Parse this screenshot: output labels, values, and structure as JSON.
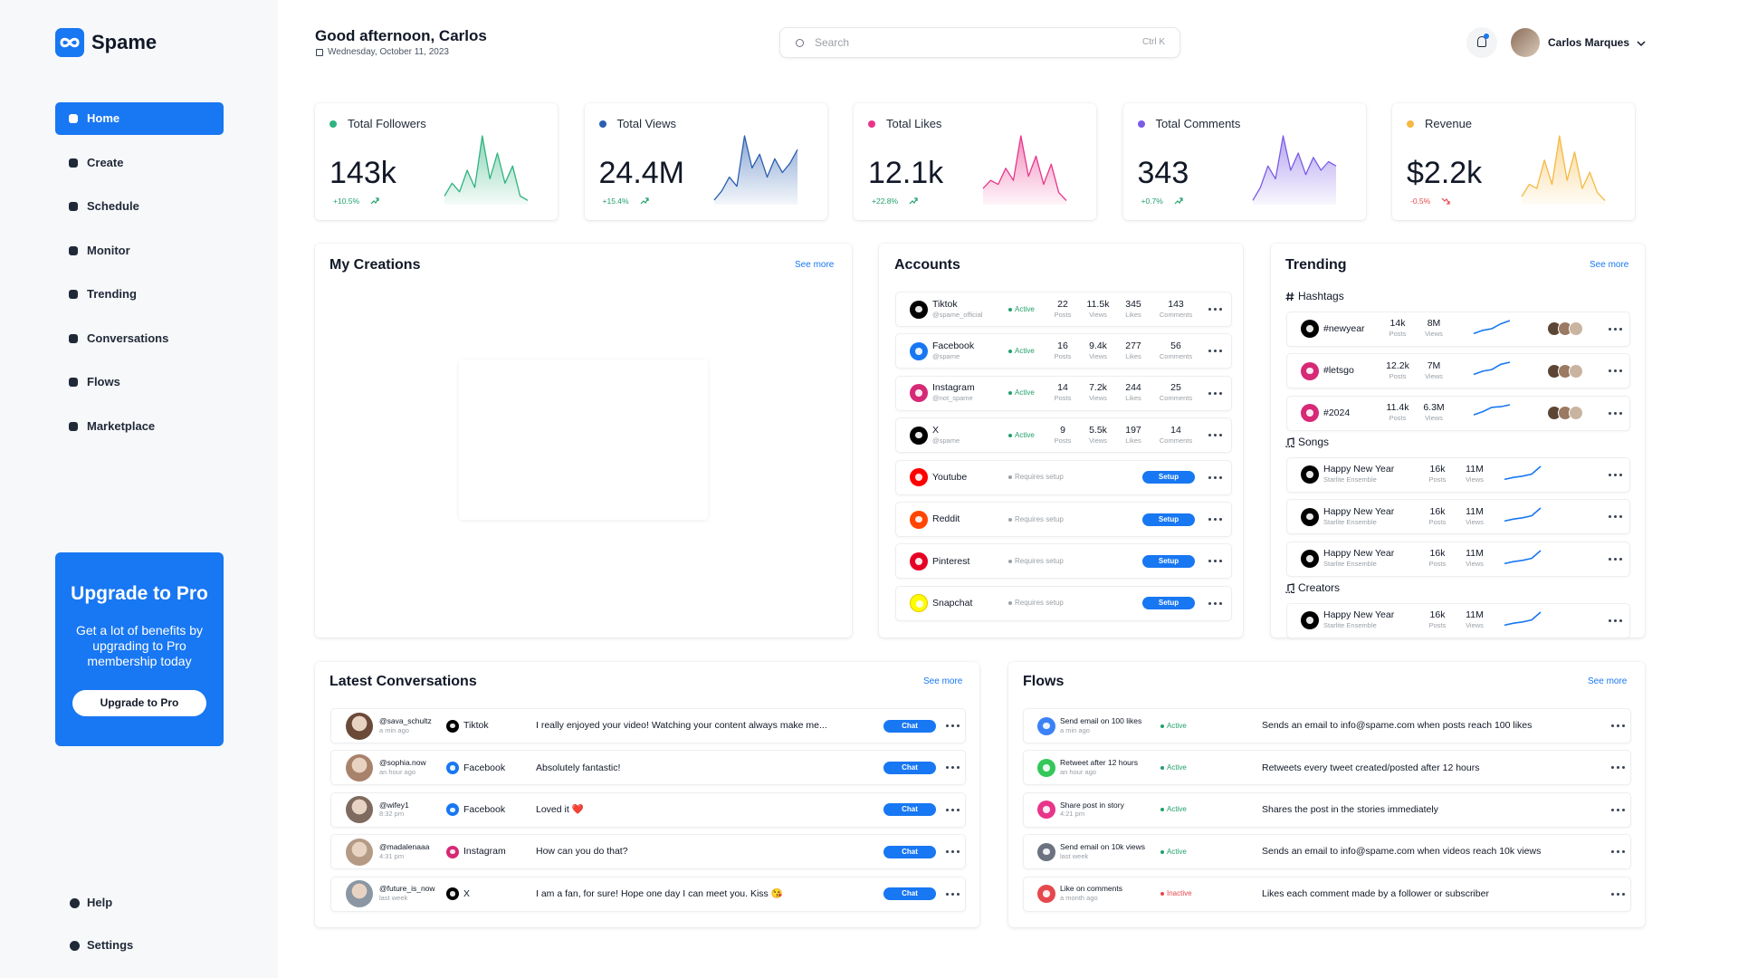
{
  "sidebar": {
    "brand": "Spame",
    "nav": [
      "Home",
      "Create",
      "Schedule",
      "Monitor",
      "Trending",
      "Conversations",
      "Flows",
      "Marketplace"
    ],
    "upgrade": {
      "title": "Upgrade to Pro",
      "text": "Get a lot of benefits by upgrading to Pro membership today",
      "button": "Upgrade to Pro"
    },
    "footer": [
      "Help",
      "Settings"
    ]
  },
  "header": {
    "greeting": "Good afternoon, Carlos",
    "date": "Wednesday, October 11, 2023",
    "search": "Search",
    "shortcut": "Ctrl K",
    "user": "Carlos Marques"
  },
  "stats": [
    {
      "label": "Total Followers",
      "value": "143k",
      "change": "+10.5%",
      "color": "#2fb37f",
      "trend": [
        10,
        25,
        15,
        40,
        20,
        80,
        30,
        60,
        25,
        45,
        10,
        5
      ]
    },
    {
      "label": "Total Views",
      "value": "24.4M",
      "change": "+15.4%",
      "color": "#2b5fb0",
      "trend": [
        5,
        15,
        30,
        20,
        75,
        40,
        55,
        30,
        50,
        35,
        45,
        60
      ]
    },
    {
      "label": "Total Likes",
      "value": "12.1k",
      "change": "+22.8%",
      "color": "#e8358a",
      "trend": [
        20,
        30,
        25,
        45,
        30,
        85,
        35,
        60,
        25,
        50,
        15,
        5
      ]
    },
    {
      "label": "Total Comments",
      "value": "343",
      "change": "+0.7%",
      "color": "#7b5ce6",
      "trend": [
        5,
        20,
        45,
        30,
        80,
        40,
        60,
        35,
        55,
        40,
        50,
        45
      ]
    },
    {
      "label": "Revenue",
      "value": "$2.2k",
      "change": "-0.5%",
      "color": "#f5b942",
      "trend": [
        10,
        25,
        20,
        55,
        25,
        85,
        30,
        65,
        20,
        40,
        15,
        5
      ]
    }
  ],
  "creations": {
    "title": "My Creations",
    "more": "See more"
  },
  "accounts": {
    "title": "Accounts",
    "rows": [
      {
        "platform": "Tiktok",
        "handle": "@spame_official",
        "status": "Active",
        "color": "#000000",
        "metrics": [
          {
            "value": "22",
            "label": "Posts"
          },
          {
            "value": "11.5k",
            "label": "Views"
          },
          {
            "value": "345",
            "label": "Likes"
          },
          {
            "value": "143",
            "label": "Comments"
          }
        ]
      },
      {
        "platform": "Facebook",
        "handle": "@spame",
        "status": "Active",
        "color": "#1877f2",
        "metrics": [
          {
            "value": "16",
            "label": "Posts"
          },
          {
            "value": "9.4k",
            "label": "Views"
          },
          {
            "value": "277",
            "label": "Likes"
          },
          {
            "value": "56",
            "label": "Comments"
          }
        ]
      },
      {
        "platform": "Instagram",
        "handle": "@not_spame",
        "status": "Active",
        "color": "#d62976",
        "metrics": [
          {
            "value": "14",
            "label": "Posts"
          },
          {
            "value": "7.2k",
            "label": "Views"
          },
          {
            "value": "244",
            "label": "Likes"
          },
          {
            "value": "25",
            "label": "Comments"
          }
        ]
      },
      {
        "platform": "X",
        "handle": "@spame",
        "status": "Active",
        "color": "#000000",
        "metrics": [
          {
            "value": "9",
            "label": "Posts"
          },
          {
            "value": "5.5k",
            "label": "Views"
          },
          {
            "value": "197",
            "label": "Likes"
          },
          {
            "value": "14",
            "label": "Comments"
          }
        ]
      },
      {
        "platform": "Youtube",
        "status": "Requires setup",
        "action": "Setup",
        "color": "#ff0000"
      },
      {
        "platform": "Reddit",
        "status": "Requires setup",
        "action": "Setup",
        "color": "#ff4500"
      },
      {
        "platform": "Pinterest",
        "status": "Requires setup",
        "action": "Setup",
        "color": "#e60023"
      },
      {
        "platform": "Snapchat",
        "status": "Requires setup",
        "action": "Setup",
        "color": "#fffc00"
      }
    ]
  },
  "trending": {
    "title": "Trending",
    "more": "See more",
    "groups": [
      {
        "name": "Hashtags",
        "items": [
          {
            "name": "#newyear",
            "color": "#000000",
            "metrics": [
              {
                "value": "14k",
                "label": "Posts"
              },
              {
                "value": "8M",
                "label": "Views"
              }
            ],
            "trend": [
              1,
              2,
              2.5,
              4,
              5
            ]
          },
          {
            "name": "#letsgo",
            "color": "#d62976",
            "metrics": [
              {
                "value": "12.2k",
                "label": "Posts"
              },
              {
                "value": "7M",
                "label": "Views"
              }
            ],
            "trend": [
              1,
              1.8,
              2.2,
              3.5,
              4
            ]
          },
          {
            "name": "#2024",
            "color": "#d62976",
            "metrics": [
              {
                "value": "11.4k",
                "label": "Posts"
              },
              {
                "value": "6.3M",
                "label": "Views"
              }
            ],
            "trend": [
              1,
              1.5,
              2.2,
              2.3,
              2.6
            ]
          }
        ]
      },
      {
        "name": "Songs",
        "items": [
          {
            "name": "Happy New Year",
            "artist": "Starlite Ensemble",
            "color": "#000000",
            "metrics": [
              {
                "value": "16k",
                "label": "Posts"
              },
              {
                "value": "11M",
                "label": "Views"
              }
            ],
            "trend": [
              1,
              1.6,
              2,
              2.6,
              5
            ]
          },
          {
            "name": "Happy New Year",
            "artist": "Starlite Ensemble",
            "color": "#000000",
            "metrics": [
              {
                "value": "16k",
                "label": "Posts"
              },
              {
                "value": "11M",
                "label": "Views"
              }
            ],
            "trend": [
              1,
              1.6,
              2,
              2.6,
              5
            ]
          },
          {
            "name": "Happy New Year",
            "artist": "Starlite Ensemble",
            "color": "#000000",
            "metrics": [
              {
                "value": "16k",
                "label": "Posts"
              },
              {
                "value": "11M",
                "label": "Views"
              }
            ],
            "trend": [
              1,
              1.6,
              2,
              2.6,
              5
            ]
          }
        ]
      },
      {
        "name": "Creators",
        "items": [
          {
            "name": "Happy New Year",
            "artist": "Starlite Ensemble",
            "color": "#000000",
            "metrics": [
              {
                "value": "16k",
                "label": "Posts"
              },
              {
                "value": "11M",
                "label": "Views"
              }
            ],
            "trend": [
              1,
              1.6,
              2,
              2.6,
              5
            ]
          }
        ]
      }
    ]
  },
  "conversations": {
    "title": "Latest Conversations",
    "more": "See more",
    "rows": [
      {
        "user": "@sava_schultz",
        "time": "a min ago",
        "platform": "Tiktok",
        "color": "#000000",
        "message": "I really enjoyed your video! Watching your content always make me...",
        "action": "Chat"
      },
      {
        "user": "@sophia.now",
        "time": "an hour ago",
        "platform": "Facebook",
        "color": "#1877f2",
        "message": "Absolutely fantastic!",
        "action": "Chat"
      },
      {
        "user": "@wifey1",
        "time": "8:32 pm",
        "platform": "Facebook",
        "color": "#1877f2",
        "message": "Loved it ❤️",
        "action": "Chat"
      },
      {
        "user": "@madalenaaa",
        "time": "4:31 pm",
        "platform": "Instagram",
        "color": "#d62976",
        "message": "How can you do that?",
        "action": "Chat"
      },
      {
        "user": "@future_is_now",
        "time": "last week",
        "platform": "X",
        "color": "#000000",
        "message": "I am a fan, for sure! Hope one day I can meet you. Kiss 😘",
        "action": "Chat"
      }
    ]
  },
  "flows": {
    "title": "Flows",
    "more": "See more",
    "rows": [
      {
        "name": "Send email on 100 likes",
        "time": "a min ago",
        "status": "Active",
        "status_color": "#22a06b",
        "color": "#3b82f6",
        "description": "Sends an email to info@spame.com when posts reach 100 likes"
      },
      {
        "name": "Retweet after 12 hours",
        "time": "an hour ago",
        "status": "Active",
        "status_color": "#22a06b",
        "color": "#34c759",
        "description": "Retweets every tweet created/posted after 12 hours"
      },
      {
        "name": "Share post in story",
        "time": "4:21 pm",
        "status": "Active",
        "status_color": "#22a06b",
        "color": "#e8358a",
        "description": "Shares the post in the stories immediately"
      },
      {
        "name": "Send email on 10k views",
        "time": "last week",
        "status": "Active",
        "status_color": "#22a06b",
        "color": "#6b7280",
        "description": "Sends an email to info@spame.com when videos reach 10k views"
      },
      {
        "name": "Like on comments",
        "time": "a month ago",
        "status": "Inactive",
        "status_color": "#e5484d",
        "color": "#e5484d",
        "description": "Likes each comment made by a follower or subscriber"
      }
    ]
  }
}
